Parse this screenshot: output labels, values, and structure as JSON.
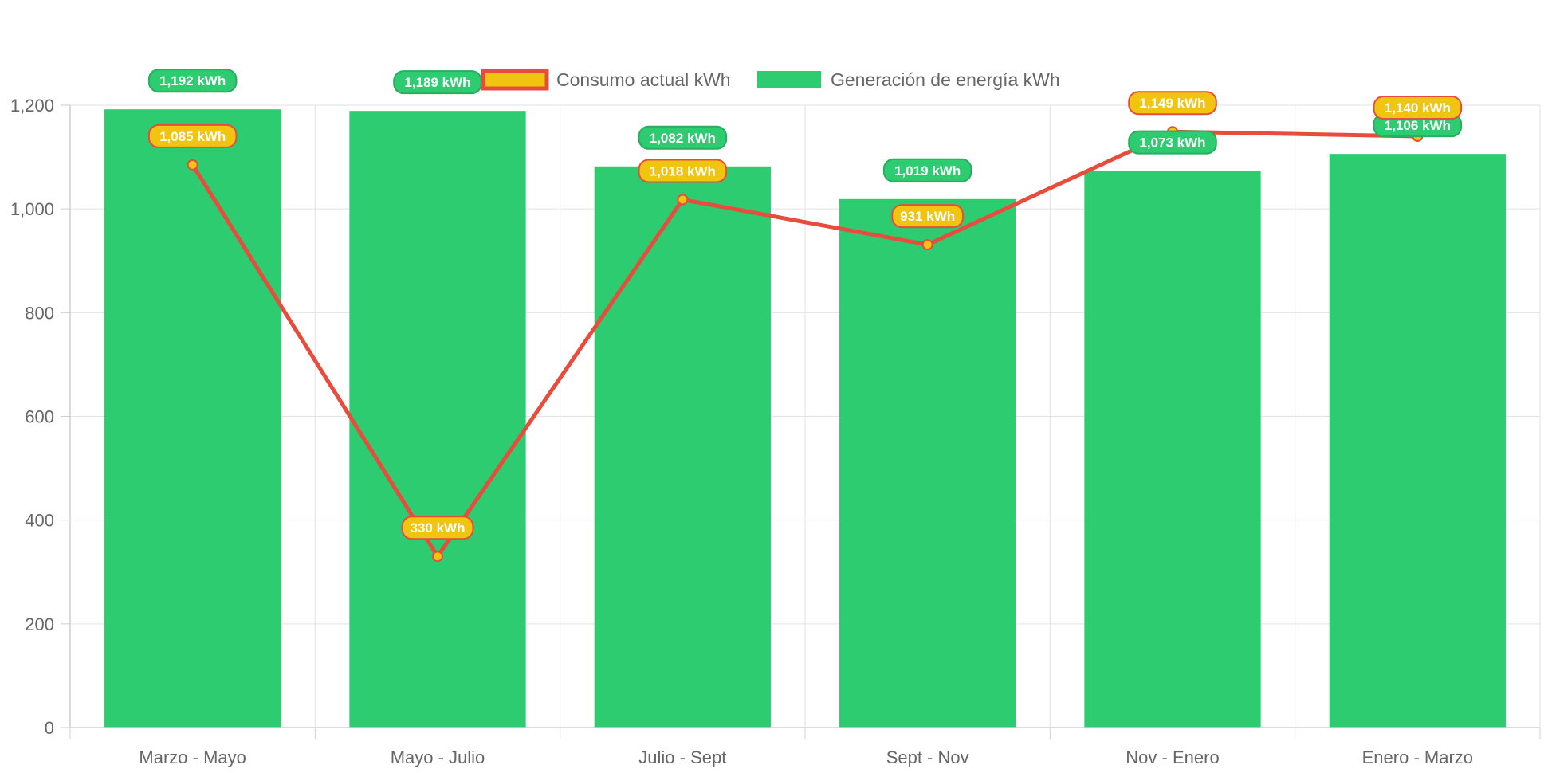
{
  "chart_data": {
    "type": "bar",
    "categories": [
      "Marzo - Mayo",
      "Mayo - Julio",
      "Julio - Sept",
      "Sept - Nov",
      "Nov - Enero",
      "Enero - Marzo"
    ],
    "series": [
      {
        "name": "Consumo actual kWh",
        "type": "line",
        "values": [
          1085,
          330,
          1018,
          931,
          1149,
          1140
        ],
        "labels": [
          "1,085 kWh",
          "330 kWh",
          "1,018 kWh",
          "931 kWh",
          "1,149 kWh",
          "1,140 kWh"
        ],
        "line_color": "#e74c3c",
        "point_color": "#f1c40f",
        "label_bg": "#f1c40f",
        "label_border": "#e74c3c"
      },
      {
        "name": "Generación de energía kWh",
        "type": "bar",
        "values": [
          1192,
          1189,
          1082,
          1019,
          1073,
          1106
        ],
        "labels": [
          "1,192 kWh",
          "1,189 kWh",
          "1,082 kWh",
          "1,019 kWh",
          "1,073 kWh",
          "1,106 kWh"
        ],
        "bar_color": "#2ecc71",
        "label_bg": "#2ecc71",
        "label_border": "#27ae60"
      }
    ],
    "y_ticks": [
      "0",
      "200",
      "400",
      "600",
      "800",
      "1,000",
      "1,200"
    ],
    "y_tick_values": [
      0,
      200,
      400,
      600,
      800,
      1000,
      1200
    ],
    "ylim": [
      0,
      1200
    ],
    "grid": true,
    "legend_position": "top"
  }
}
